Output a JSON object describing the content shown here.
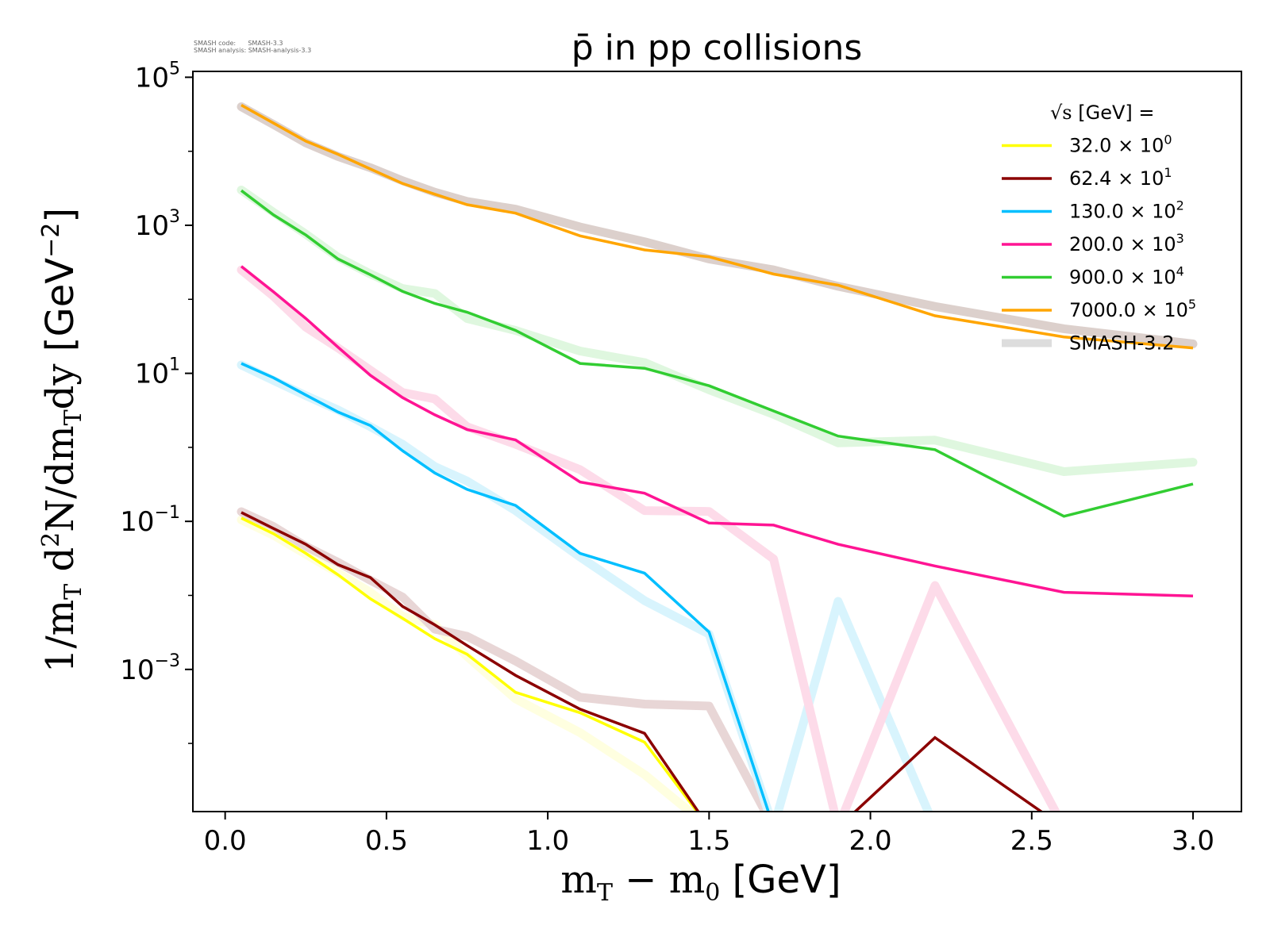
{
  "meta": {
    "line1": "SMASH code:      SMASH-3.3",
    "line2": "SMASH analysis: SMASH-analysis-3.3"
  },
  "chart_data": {
    "type": "line",
    "title": "p̄ in pp collisions",
    "xlabel": "m_T − m_0 [GeV]",
    "ylabel": "1/m_T d²N/dm_T dy [GeV⁻²]",
    "xscale": "linear",
    "yscale": "log",
    "xlim": [
      -0.1,
      3.15
    ],
    "ylim": [
      1.2e-05,
      120000.0
    ],
    "x_ticks": [
      "0.0",
      "0.5",
      "1.0",
      "1.5",
      "2.0",
      "2.5",
      "3.0"
    ],
    "x_tick_values": [
      0.0,
      0.5,
      1.0,
      1.5,
      2.0,
      2.5,
      3.0
    ],
    "y_ticks": [
      {
        "base": "10",
        "exp": "5",
        "value": 100000
      },
      {
        "base": "10",
        "exp": "3",
        "value": 1000
      },
      {
        "base": "10",
        "exp": "1",
        "value": 10
      },
      {
        "base": "10",
        "exp": "−1",
        "value": 0.1
      },
      {
        "base": "10",
        "exp": "−3",
        "value": 0.001
      }
    ],
    "grid": false,
    "legend": {
      "placement": "top-right",
      "title_prefix": "√s",
      "title_suffix": " [GeV] =",
      "reference_label": "SMASH-3.2"
    },
    "x": [
      0.05,
      0.15,
      0.25,
      0.35,
      0.45,
      0.55,
      0.65,
      0.75,
      0.9,
      1.1,
      1.3,
      1.5,
      1.7,
      1.9,
      2.2,
      2.6,
      3.0
    ],
    "series": [
      {
        "name": "32.0 × 10⁰",
        "label_main": "32.0 × 10",
        "label_exp": "0",
        "color": "#ffff00",
        "values": [
          0.111,
          0.068,
          0.037,
          0.019,
          0.009,
          0.0049,
          0.0026,
          0.0016,
          0.00049,
          0.00026,
          0.000104,
          0,
          0,
          0,
          0,
          0,
          0
        ],
        "reference": [
          0.105,
          0.065,
          0.036,
          0.02,
          0.011,
          0.0052,
          0.004,
          0.0015,
          0.0004,
          0.00014,
          3.8e-05,
          0,
          0,
          0,
          0,
          0,
          0
        ]
      },
      {
        "name": "62.4 × 10¹",
        "label_main": "62.4 × 10",
        "label_exp": "1",
        "color": "#8b0000",
        "values": [
          0.132,
          0.08,
          0.049,
          0.026,
          0.0174,
          0.0071,
          0.004,
          0.0021,
          0.00083,
          0.00029,
          0.000137,
          0,
          0,
          0,
          0.00012,
          0,
          0
        ],
        "reference": [
          0.135,
          0.085,
          0.046,
          0.028,
          0.016,
          0.0095,
          0.0035,
          0.0028,
          0.0013,
          0.00042,
          0.00034,
          0.00032,
          0,
          0,
          0,
          0,
          0
        ]
      },
      {
        "name": "130.0 × 10²",
        "label_main": "130.0 × 10",
        "label_exp": "2",
        "color": "#00bfff",
        "values": [
          13.6,
          8.7,
          5.1,
          3.0,
          1.97,
          0.9,
          0.45,
          0.27,
          0.164,
          0.037,
          0.02,
          0.0032,
          0,
          0,
          0,
          0,
          0
        ],
        "reference": [
          13.0,
          8.0,
          5.0,
          3.2,
          1.9,
          1.1,
          0.55,
          0.35,
          0.14,
          0.033,
          0.0085,
          0.003,
          0,
          0.0083,
          0,
          0,
          0
        ]
      },
      {
        "name": "200.0 × 10³",
        "label_main": "200.0 × 10",
        "label_exp": "3",
        "color": "#ff1493",
        "values": [
          279,
          126,
          55,
          22.5,
          9.4,
          4.7,
          2.75,
          1.74,
          1.26,
          0.34,
          0.24,
          0.095,
          0.089,
          0.049,
          0.025,
          0.011,
          0.0098
        ],
        "reference": [
          250,
          110,
          42,
          22,
          11,
          5.5,
          4.5,
          1.9,
          1.1,
          0.5,
          0.14,
          0.136,
          0.031,
          0,
          0.0136,
          0,
          0
        ]
      },
      {
        "name": "900.0 × 10⁴",
        "label_main": "900.0 × 10",
        "label_exp": "4",
        "color": "#32cd32",
        "values": [
          2950,
          1380,
          740,
          350,
          215,
          128,
          88,
          67,
          38,
          13.6,
          11.7,
          6.8,
          3.1,
          1.42,
          0.93,
          0.117,
          0.32
        ],
        "reference": [
          3000,
          1500,
          760,
          370,
          220,
          140,
          120,
          55,
          38,
          20,
          14,
          6.0,
          2.8,
          1.15,
          1.25,
          0.47,
          0.63
        ]
      },
      {
        "name": "7000.0 × 10⁵",
        "label_main": "7000.0 × 10",
        "label_exp": "5",
        "color": "#ffa500",
        "values": [
          42000,
          24000,
          13700,
          9100,
          5760,
          3670,
          2630,
          1900,
          1460,
          720,
          465,
          375,
          219,
          155,
          60,
          31,
          22
        ],
        "reference": [
          40000,
          23000,
          13000,
          8500,
          6000,
          4000,
          2800,
          2100,
          1650,
          950,
          600,
          350,
          250,
          150,
          80,
          40,
          25
        ]
      }
    ],
    "reference_colors": [
      "#ffffe0",
      "#e8d6d6",
      "#d8f4fd",
      "#fddbe9",
      "#dff7df",
      "#dcd0cc"
    ],
    "reference_legend_color": "#dddddd"
  }
}
